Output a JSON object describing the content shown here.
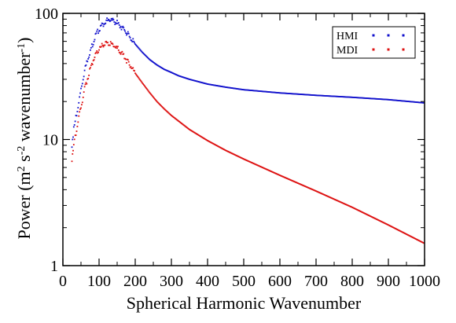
{
  "chart_data": {
    "type": "scatter",
    "title": "",
    "xlabel": "Spherical Harmonic Wavenumber",
    "ylabel_parts": {
      "base": "Power (m",
      "sup1": "2",
      "mid": " s",
      "sup2": "-2",
      "tail": " wavenumber",
      "sup3": "-1",
      "close": ")"
    },
    "xlim": [
      0,
      1000
    ],
    "ylim": [
      1,
      100
    ],
    "yscale": "log",
    "grid": false,
    "legend_position": "top-right",
    "x_ticks": [
      0,
      100,
      200,
      300,
      400,
      500,
      600,
      700,
      800,
      900,
      1000
    ],
    "x_tick_labels": [
      "0",
      "100",
      "200",
      "300",
      "400",
      "500",
      "600",
      "700",
      "800",
      "900",
      "1000"
    ],
    "y_ticks": [
      1,
      10,
      100
    ],
    "y_tick_labels": [
      "1",
      "10",
      "100"
    ],
    "series": [
      {
        "name": "HMI",
        "color": "#1111cc",
        "points": [
          [
            25,
            9
          ],
          [
            30,
            12
          ],
          [
            40,
            17
          ],
          [
            50,
            25
          ],
          [
            60,
            35
          ],
          [
            70,
            45
          ],
          [
            80,
            55
          ],
          [
            90,
            66
          ],
          [
            100,
            75
          ],
          [
            110,
            82
          ],
          [
            120,
            87
          ],
          [
            130,
            89
          ],
          [
            140,
            87
          ],
          [
            150,
            84
          ],
          [
            160,
            79
          ],
          [
            170,
            74
          ],
          [
            180,
            68
          ],
          [
            190,
            62
          ],
          [
            200,
            57
          ],
          [
            220,
            49
          ],
          [
            240,
            43
          ],
          [
            260,
            39
          ],
          [
            280,
            36
          ],
          [
            300,
            34
          ],
          [
            320,
            32
          ],
          [
            350,
            30
          ],
          [
            400,
            27.5
          ],
          [
            450,
            26
          ],
          [
            500,
            24.8
          ],
          [
            600,
            23.4
          ],
          [
            700,
            22.4
          ],
          [
            800,
            21.6
          ],
          [
            900,
            20.7
          ],
          [
            1000,
            19.5
          ]
        ]
      },
      {
        "name": "MDI",
        "color": "#dd1111",
        "points": [
          [
            25,
            7
          ],
          [
            30,
            9
          ],
          [
            40,
            13
          ],
          [
            50,
            18
          ],
          [
            60,
            25
          ],
          [
            70,
            32
          ],
          [
            80,
            40
          ],
          [
            90,
            46
          ],
          [
            100,
            52
          ],
          [
            110,
            56
          ],
          [
            120,
            58
          ],
          [
            130,
            58
          ],
          [
            140,
            56
          ],
          [
            150,
            53
          ],
          [
            160,
            49
          ],
          [
            170,
            45
          ],
          [
            180,
            41
          ],
          [
            190,
            37
          ],
          [
            200,
            33.5
          ],
          [
            220,
            28
          ],
          [
            240,
            23.5
          ],
          [
            260,
            20
          ],
          [
            280,
            17.5
          ],
          [
            300,
            15.5
          ],
          [
            350,
            12
          ],
          [
            400,
            9.8
          ],
          [
            450,
            8.2
          ],
          [
            500,
            7
          ],
          [
            600,
            5.2
          ],
          [
            700,
            3.9
          ],
          [
            800,
            2.9
          ],
          [
            900,
            2.1
          ],
          [
            1000,
            1.5
          ]
        ]
      }
    ]
  }
}
